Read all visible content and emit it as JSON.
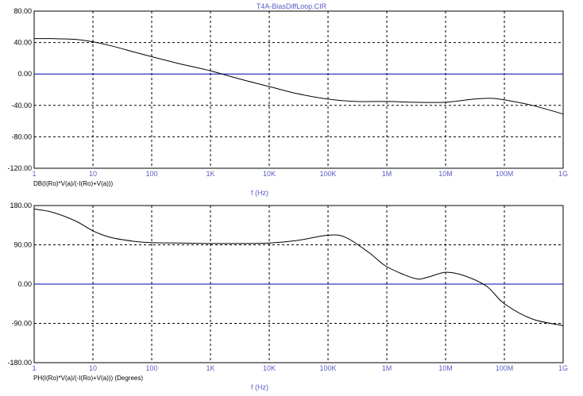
{
  "window": {
    "title": "T4A-BiasDiffLoop.CIR"
  },
  "colors": {
    "trace": "#000000",
    "zero_line": "#0000b4",
    "grid": "#000000",
    "x_tick_text": "#5a5ac8",
    "y_tick_text": "#000000"
  },
  "chart_data": [
    {
      "type": "line",
      "title": "",
      "xlabel": "f (Hz)",
      "ylabel": "DB(I(Ro)*V(a)/(-I(Ro)+V(a)))",
      "xscale": "log",
      "xlim": [
        1,
        1000000000
      ],
      "ylim": [
        -120,
        80
      ],
      "grid": true,
      "x_tick_labels": [
        "1",
        "10",
        "100",
        "1K",
        "10K",
        "100K",
        "1M",
        "10M",
        "100M",
        "1G"
      ],
      "y_tick_labels": [
        "80.00",
        "40.00",
        "0.00",
        "-40.00",
        "-80.00",
        "-120.00"
      ],
      "y_ticks": [
        80,
        40,
        0,
        -40,
        -80,
        -120
      ],
      "reference_line": 0,
      "series": [
        {
          "x": [
            1,
            2,
            5,
            10,
            20,
            50,
            100,
            300,
            1000,
            3000,
            10000,
            30000,
            100000,
            300000,
            1000000,
            3000000,
            10000000,
            30000000,
            60000000,
            100000000,
            300000000,
            1000000000
          ],
          "values": [
            45,
            45,
            44,
            41,
            36,
            28,
            22,
            13,
            4,
            -6,
            -16,
            -25,
            -32,
            -35,
            -35,
            -36,
            -36,
            -32,
            -31,
            -33,
            -40,
            -51
          ]
        }
      ]
    },
    {
      "type": "line",
      "title": "",
      "xlabel": "f (Hz)",
      "ylabel": "PH(I(Ro)*V(a)/(-I(Ro)+V(a))) (Degrees)",
      "xscale": "log",
      "xlim": [
        1,
        1000000000
      ],
      "ylim": [
        -180,
        180
      ],
      "grid": true,
      "x_tick_labels": [
        "1",
        "10",
        "100",
        "1K",
        "10K",
        "100K",
        "1M",
        "10M",
        "100M",
        "1G"
      ],
      "y_tick_labels": [
        "180.00",
        "90.00",
        "0.00",
        "-90.00",
        "-180.00"
      ],
      "y_ticks": [
        180,
        90,
        0,
        -90,
        -180
      ],
      "reference_line": 0,
      "series": [
        {
          "x": [
            1,
            2,
            5,
            10,
            20,
            50,
            100,
            300,
            1000,
            3000,
            10000,
            30000,
            100000,
            200000,
            500000,
            1000000,
            3000000,
            5000000,
            10000000,
            20000000,
            50000000,
            100000000,
            300000000,
            1000000000
          ],
          "values": [
            172,
            165,
            145,
            122,
            107,
            98,
            95,
            94,
            93,
            93,
            94,
            100,
            112,
            107,
            72,
            40,
            13,
            16,
            27,
            20,
            -5,
            -45,
            -80,
            -95
          ]
        }
      ]
    }
  ]
}
